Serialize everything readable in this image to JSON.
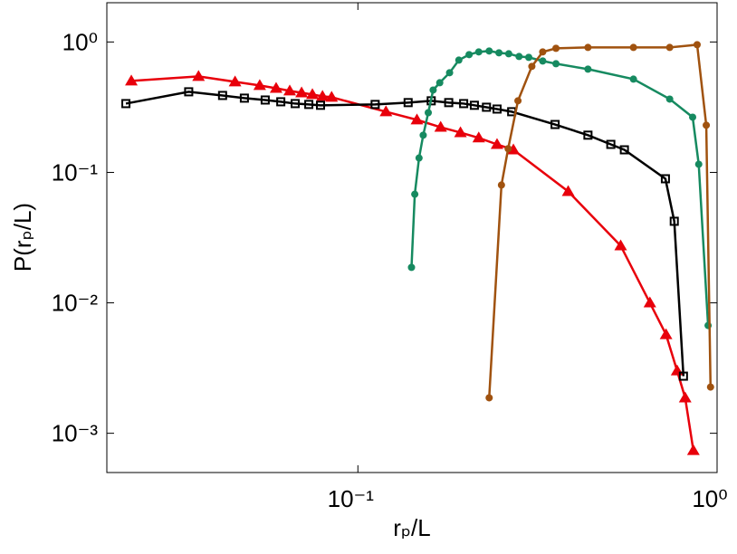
{
  "chart_data": {
    "type": "line",
    "xlabel": "rₚ/L",
    "ylabel": "P(rₚ/L)",
    "xscale": "log",
    "yscale": "log",
    "xlim": [
      0.02,
      1
    ],
    "ylim": [
      0.0005,
      2
    ],
    "xticks": [
      {
        "value": 0.1,
        "label": "10⁻¹"
      },
      {
        "value": 1,
        "label": "10⁰"
      }
    ],
    "yticks": [
      {
        "value": 0.001,
        "label": "10⁻³"
      },
      {
        "value": 0.01,
        "label": "10⁻²"
      },
      {
        "value": 0.1,
        "label": "10⁻¹"
      },
      {
        "value": 1,
        "label": "10⁰"
      }
    ],
    "series": [
      {
        "color": "#e8000b",
        "marker": "triangle",
        "x": [
          0.0234,
          0.036,
          0.0455,
          0.0533,
          0.0592,
          0.0646,
          0.0697,
          0.0747,
          0.0797,
          0.0845,
          0.1197,
          0.146,
          0.17,
          0.193,
          0.217,
          0.244,
          0.271,
          0.385,
          0.539,
          0.65,
          0.721,
          0.774,
          0.815,
          0.859
        ],
        "values": [
          0.503,
          0.545,
          0.495,
          0.464,
          0.442,
          0.422,
          0.408,
          0.396,
          0.383,
          0.377,
          0.292,
          0.253,
          0.222,
          0.202,
          0.184,
          0.164,
          0.149,
          0.0715,
          0.0274,
          0.01,
          0.00571,
          0.00301,
          0.00187,
          0.000738
        ]
      },
      {
        "color": "#000000",
        "marker": "square",
        "x": [
          0.0226,
          0.0338,
          0.042,
          0.0483,
          0.0552,
          0.061,
          0.0669,
          0.073,
          0.0787,
          0.1117,
          0.138,
          0.16,
          0.179,
          0.197,
          0.211,
          0.228,
          0.244,
          0.268,
          0.354,
          0.437,
          0.506,
          0.552,
          0.718,
          0.76,
          0.806
        ],
        "values": [
          0.337,
          0.415,
          0.389,
          0.371,
          0.359,
          0.348,
          0.337,
          0.332,
          0.327,
          0.332,
          0.343,
          0.354,
          0.343,
          0.337,
          0.327,
          0.316,
          0.306,
          0.292,
          0.233,
          0.193,
          0.164,
          0.149,
          0.0894,
          0.0422,
          0.00274
        ]
      },
      {
        "color": "#168a60",
        "marker": "circle",
        "x": [
          0.141,
          0.144,
          0.148,
          0.152,
          0.157,
          0.162,
          0.169,
          0.18,
          0.191,
          0.204,
          0.217,
          0.232,
          0.247,
          0.263,
          0.281,
          0.299,
          0.327,
          0.356,
          0.437,
          0.585,
          0.738,
          0.855,
          0.889,
          0.944
        ],
        "values": [
          0.0187,
          0.068,
          0.129,
          0.193,
          0.287,
          0.428,
          0.487,
          0.581,
          0.726,
          0.8,
          0.839,
          0.853,
          0.826,
          0.812,
          0.774,
          0.762,
          0.715,
          0.681,
          0.619,
          0.519,
          0.365,
          0.265,
          0.1155,
          0.0067
        ]
      },
      {
        "color": "#a0520f",
        "marker": "circle",
        "x": [
          0.232,
          0.251,
          0.262,
          0.279,
          0.305,
          0.327,
          0.356,
          0.437,
          0.585,
          0.738,
          0.88,
          0.933,
          0.959
        ],
        "values": [
          0.00187,
          0.08,
          0.152,
          0.354,
          0.65,
          0.839,
          0.894,
          0.908,
          0.908,
          0.908,
          0.953,
          0.23,
          0.00226
        ]
      }
    ]
  }
}
